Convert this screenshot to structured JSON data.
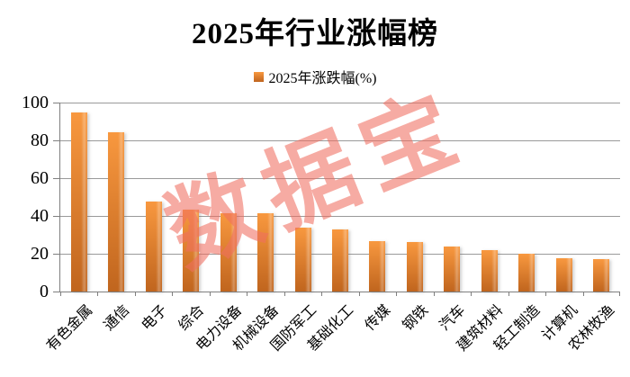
{
  "title": "2025年行业涨幅榜",
  "legend": {
    "label": "2025年涨跌幅(%)",
    "swatch_icon": "orange-square-icon"
  },
  "watermark": "数据宝",
  "colors": {
    "bar_gradient_top": "#F8983F",
    "bar_gradient_bottom": "#C0651E",
    "legend_swatch": "#ED7D31",
    "gridline": "#9A9A9A",
    "axis": "#7F7F7F",
    "watermark": "rgba(239,111,96,0.58)",
    "text": "#000000",
    "background": "#FFFFFF"
  },
  "chart_data": {
    "type": "bar",
    "title": "2025年行业涨幅榜",
    "series": [
      {
        "name": "2025年涨跌幅(%)",
        "values": [
          95,
          84.5,
          47.5,
          43.5,
          41.5,
          41.5,
          34,
          33,
          26.5,
          26,
          24,
          22,
          20,
          17.5,
          17
        ]
      }
    ],
    "categories": [
      "有色金属",
      "通信",
      "电子",
      "综合",
      "电力设备",
      "机械设备",
      "国防军工",
      "基础化工",
      "传媒",
      "钢铁",
      "汽车",
      "建筑材料",
      "轻工制造",
      "计算机",
      "农林牧渔"
    ],
    "xlabel": "",
    "ylabel": "",
    "ylim": [
      0,
      100
    ],
    "yticks": [
      0,
      20,
      40,
      60,
      80,
      100
    ],
    "grid": true,
    "legend_position": "top-center",
    "annotations": [
      "数据宝"
    ]
  }
}
